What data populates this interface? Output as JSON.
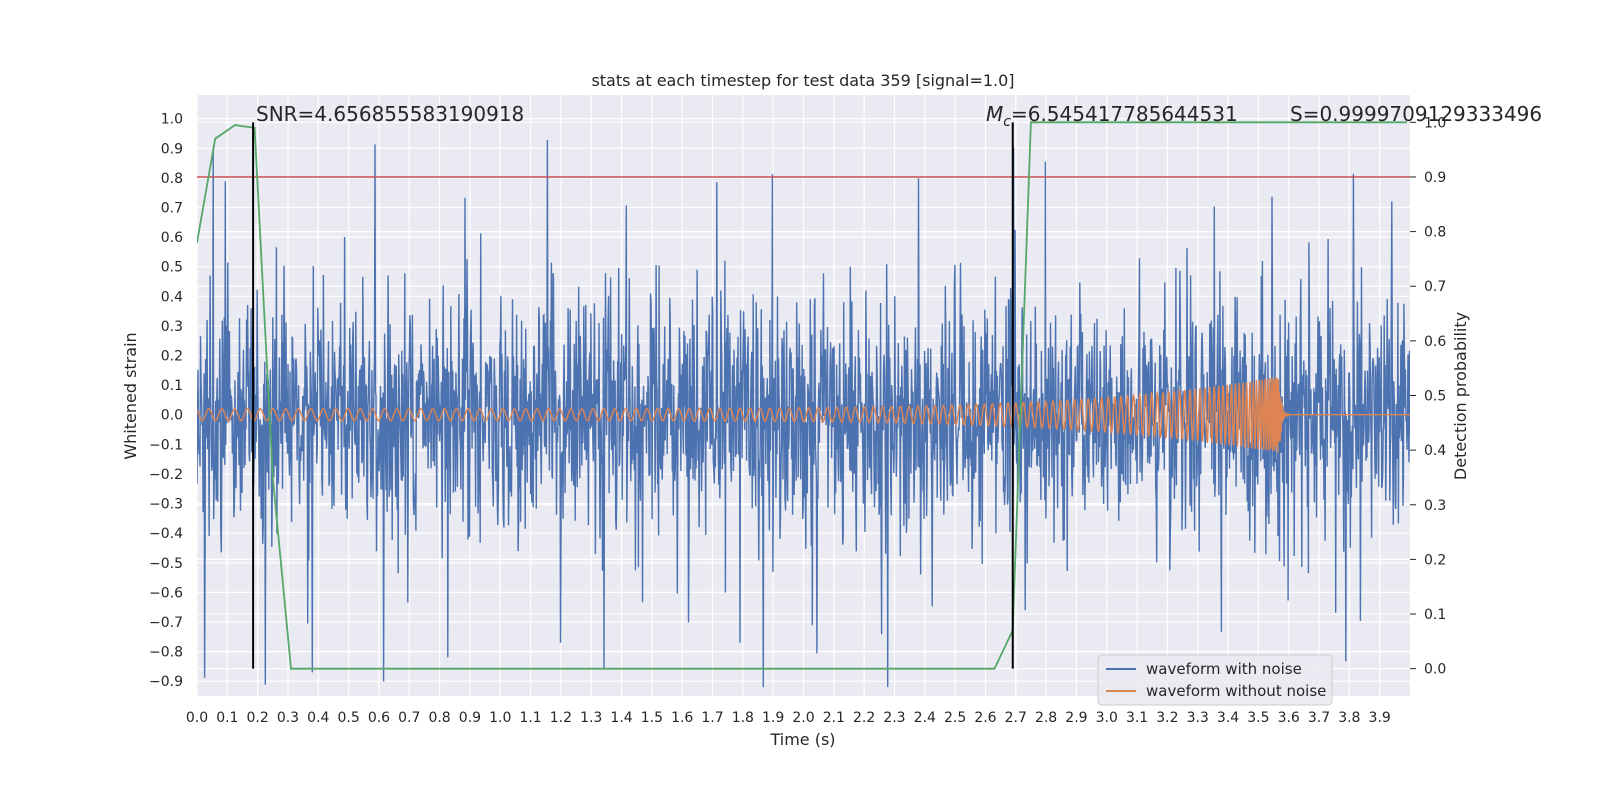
{
  "chart_data": {
    "type": "line",
    "title": "stats at each timestep for test data 359 [signal=1.0]",
    "xlabel": "Time (s)",
    "ylabel": "Whitened strain",
    "y2label": "Detection probability",
    "xlim": [
      0.0,
      4.0
    ],
    "ylim": [
      -0.95,
      1.08
    ],
    "y2lim": [
      -0.05,
      1.05
    ],
    "x_ticks": [
      "0.0",
      "0.1",
      "0.2",
      "0.3",
      "0.4",
      "0.5",
      "0.6",
      "0.7",
      "0.8",
      "0.9",
      "1.0",
      "1.1",
      "1.2",
      "1.3",
      "1.4",
      "1.5",
      "1.6",
      "1.7",
      "1.8",
      "1.9",
      "2.0",
      "2.1",
      "2.2",
      "2.3",
      "2.4",
      "2.5",
      "2.6",
      "2.7",
      "2.8",
      "2.9",
      "3.0",
      "3.1",
      "3.2",
      "3.3",
      "3.4",
      "3.5",
      "3.6",
      "3.7",
      "3.8",
      "3.9"
    ],
    "y_ticks": [
      "1.0",
      "0.9",
      "0.8",
      "0.7",
      "0.6",
      "0.5",
      "0.4",
      "0.3",
      "0.2",
      "0.1",
      "0.0",
      "−0.1",
      "−0.2",
      "−0.3",
      "−0.4",
      "−0.5",
      "−0.6",
      "−0.7",
      "−0.8",
      "−0.9"
    ],
    "y2_ticks": [
      "0.0",
      "0.1",
      "0.2",
      "0.3",
      "0.4",
      "0.5",
      "0.6",
      "0.7",
      "0.8",
      "0.9",
      "1.0"
    ],
    "grid": true,
    "legend_position": "lower-right",
    "series": [
      {
        "name": "waveform with noise",
        "color": "#4c72b0",
        "axis": "left",
        "note": "dense noise, amplitude mostly ±0.4, peaks up to 1.0"
      },
      {
        "name": "waveform without noise",
        "color": "#dd8452",
        "axis": "left",
        "note": "chirp, amplitude 0.02 growing to 0.13, merger at ~3.57 s"
      }
    ],
    "detection_probability": {
      "color": "#55a868",
      "x": [
        0.0,
        0.06,
        0.125,
        0.19,
        0.25,
        0.31,
        0.375,
        2.63,
        2.69,
        2.75,
        3.99
      ],
      "y": [
        0.78,
        0.97,
        0.995,
        0.99,
        0.35,
        0.0,
        0.0,
        0.0,
        0.07,
        1.0,
        1.0
      ]
    },
    "threshold": {
      "color": "#c44e52",
      "y2": 0.9
    },
    "vertical_markers": [
      0.185,
      2.69
    ],
    "annotations": {
      "snr": "SNR=4.656855583190918",
      "mc_symbol": "M",
      "mc_sub": "c",
      "mc_value": "=6.545417785644531",
      "s": "S=0.9999709129333496"
    }
  }
}
